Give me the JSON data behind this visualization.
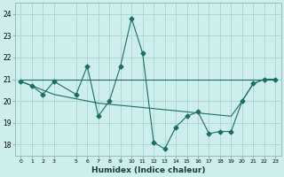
{
  "xlabel": "Humidex (Indice chaleur)",
  "background_color": "#ceeeed",
  "grid_color": "#aed8d5",
  "line_color": "#1a6e65",
  "xlim": [
    -0.5,
    23.5
  ],
  "ylim": [
    17.5,
    24.5
  ],
  "yticks": [
    18,
    19,
    20,
    21,
    22,
    23,
    24
  ],
  "xtick_vals": [
    0,
    1,
    2,
    3,
    5,
    6,
    7,
    8,
    9,
    10,
    11,
    12,
    13,
    14,
    15,
    16,
    17,
    18,
    19,
    20,
    21,
    22,
    23
  ],
  "xtick_labels": [
    "0",
    "1",
    "2",
    "3",
    "5",
    "6",
    "7",
    "8",
    "9",
    "10",
    "11",
    "12",
    "13",
    "14",
    "15",
    "16",
    "17",
    "18",
    "19",
    "20",
    "21",
    "22",
    "23"
  ],
  "zigzag_x": [
    0,
    1,
    2,
    3,
    5,
    6,
    7,
    8,
    9,
    10,
    11,
    12,
    13,
    14,
    15,
    16,
    17,
    18,
    19,
    20,
    21,
    22,
    23
  ],
  "zigzag_y": [
    20.9,
    20.7,
    20.3,
    20.9,
    20.3,
    21.6,
    19.3,
    20.0,
    21.6,
    23.8,
    22.2,
    18.1,
    17.8,
    18.8,
    19.3,
    19.5,
    18.5,
    18.6,
    18.6,
    20.0,
    20.8,
    21.0,
    21.0
  ],
  "hline_x": [
    0,
    1,
    2,
    3,
    5,
    6,
    7,
    8,
    9,
    10,
    11,
    12,
    13,
    14,
    15,
    16,
    17,
    18,
    19,
    20,
    21,
    22,
    23
  ],
  "hline_y": [
    21.0,
    21.0,
    21.0,
    21.0,
    21.0,
    21.0,
    21.0,
    21.0,
    21.0,
    21.0,
    21.0,
    21.0,
    21.0,
    21.0,
    21.0,
    21.0,
    21.0,
    21.0,
    21.0,
    21.0,
    21.0,
    21.0,
    21.0
  ],
  "trend_x": [
    0,
    1,
    2,
    3,
    5,
    6,
    7,
    8,
    9,
    10,
    11,
    12,
    13,
    14,
    15,
    16,
    17,
    18,
    19,
    20,
    21,
    22,
    23
  ],
  "trend_y": [
    20.9,
    20.7,
    20.5,
    20.3,
    20.1,
    20.0,
    19.9,
    19.85,
    19.8,
    19.75,
    19.7,
    19.65,
    19.6,
    19.55,
    19.5,
    19.45,
    19.4,
    19.35,
    19.3,
    20.0,
    20.8,
    21.0,
    21.0
  ]
}
